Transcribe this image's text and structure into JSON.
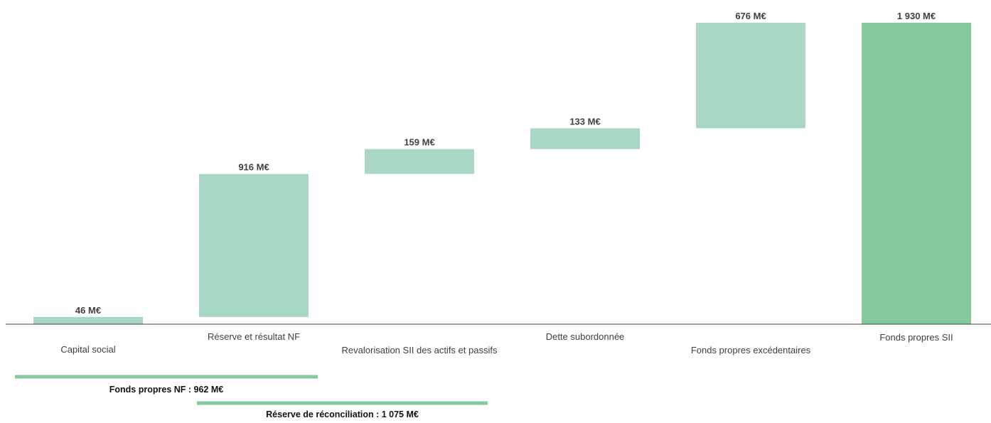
{
  "chart_data": {
    "type": "bar",
    "subtype": "waterfall",
    "title": "",
    "xlabel": "",
    "ylabel": "",
    "ylim": [
      0,
      1930
    ],
    "grid": false,
    "legend": "none",
    "unit": "M€",
    "bars": [
      {
        "category": "Capital social",
        "value": 46,
        "start": 0,
        "end": 46,
        "kind": "increment",
        "label": "46 M€"
      },
      {
        "category": "Réserve et résultat NF",
        "value": 916,
        "start": 46,
        "end": 962,
        "kind": "increment",
        "label": "916 M€"
      },
      {
        "category": "Revalorisation SII des actifs et passifs",
        "value": 159,
        "start": 962,
        "end": 1121,
        "kind": "increment",
        "label": "159 M€"
      },
      {
        "category": "Dette subordonnée",
        "value": 133,
        "start": 1121,
        "end": 1254,
        "kind": "increment",
        "label": "133 M€"
      },
      {
        "category": "Fonds propres excédentaires",
        "value": 676,
        "start": 1254,
        "end": 1930,
        "kind": "increment",
        "label": "676 M€"
      },
      {
        "category": "Fonds propres SII",
        "value": 1930,
        "start": 0,
        "end": 1930,
        "kind": "total",
        "label": "1 930 M€"
      }
    ],
    "brackets": [
      {
        "label": "Fonds propres NF : 962 M€",
        "value": 962,
        "from_category": "Capital social",
        "to_category": "Réserve et résultat NF"
      },
      {
        "label": "Réserve de réconciliation : 1 075 M€",
        "value": 1075,
        "from_category": "Réserve et résultat NF",
        "to_category": "Revalorisation SII des actifs et passifs"
      }
    ],
    "colors": {
      "increment": "#a8d8c4",
      "total": "#84c99c",
      "bracket": "#84c99c",
      "axis": "#404040"
    }
  }
}
